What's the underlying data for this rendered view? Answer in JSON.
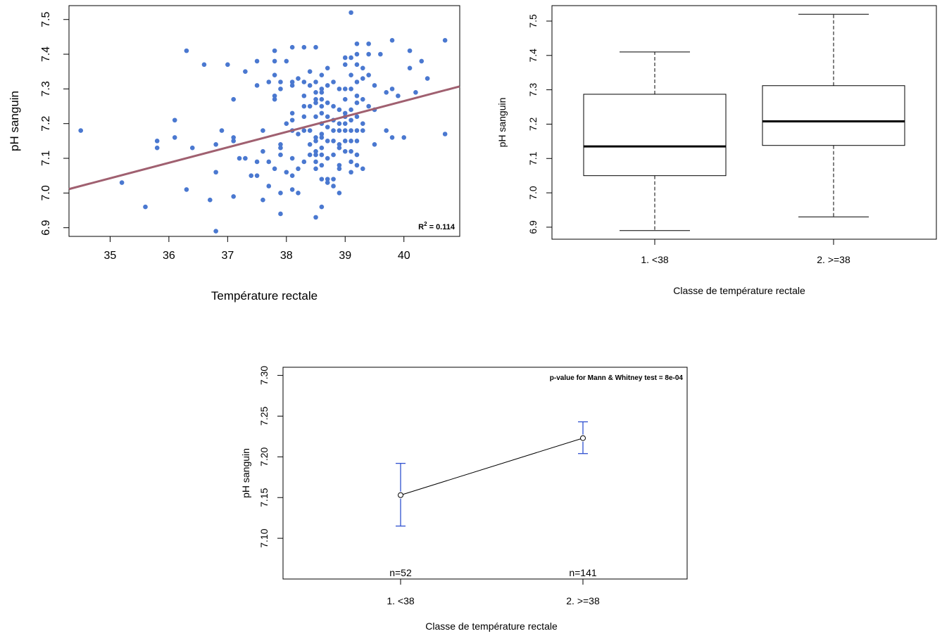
{
  "chart_data": [
    {
      "type": "scatter",
      "xlabel": "Température rectale",
      "ylabel": "pH sanguin",
      "xlim": [
        34.3,
        40.95
      ],
      "ylim": [
        6.875,
        7.54
      ],
      "xticks": [
        35,
        36,
        37,
        38,
        39,
        40
      ],
      "yticks": [
        6.9,
        7.0,
        7.1,
        7.2,
        7.3,
        7.4,
        7.5
      ],
      "point_color": "#4a78d0",
      "line_color": "#a06070",
      "regression": {
        "intercept": 5.485,
        "slope": 0.0445
      },
      "annotation": {
        "r2_prefix": "R",
        "r2_sup": "2",
        "r2_value": " = 0.114"
      },
      "points": [
        [
          34.5,
          7.18
        ],
        [
          35.2,
          7.03
        ],
        [
          35.6,
          6.96
        ],
        [
          35.8,
          7.15
        ],
        [
          35.8,
          7.13
        ],
        [
          36.1,
          7.21
        ],
        [
          36.1,
          7.16
        ],
        [
          36.3,
          7.41
        ],
        [
          36.3,
          7.01
        ],
        [
          36.4,
          7.13
        ],
        [
          36.6,
          7.37
        ],
        [
          36.7,
          6.98
        ],
        [
          36.8,
          7.14
        ],
        [
          36.8,
          7.06
        ],
        [
          36.8,
          6.89
        ],
        [
          36.9,
          7.18
        ],
        [
          37.0,
          7.37
        ],
        [
          37.1,
          7.27
        ],
        [
          37.1,
          7.16
        ],
        [
          37.1,
          7.15
        ],
        [
          37.1,
          6.99
        ],
        [
          37.2,
          7.1
        ],
        [
          37.3,
          7.35
        ],
        [
          37.3,
          7.1
        ],
        [
          37.4,
          7.05
        ],
        [
          37.5,
          7.38
        ],
        [
          37.5,
          7.31
        ],
        [
          37.5,
          7.09
        ],
        [
          37.5,
          7.05
        ],
        [
          37.6,
          7.18
        ],
        [
          37.6,
          6.98
        ],
        [
          37.7,
          7.32
        ],
        [
          37.7,
          7.09
        ],
        [
          37.7,
          7.02
        ],
        [
          37.8,
          7.41
        ],
        [
          37.8,
          7.38
        ],
        [
          37.8,
          7.34
        ],
        [
          37.8,
          7.27
        ],
        [
          37.8,
          7.07
        ],
        [
          37.9,
          7.32
        ],
        [
          37.9,
          7.3
        ],
        [
          37.9,
          7.14
        ],
        [
          37.9,
          7.13
        ],
        [
          37.9,
          7.11
        ],
        [
          37.9,
          7.0
        ],
        [
          37.9,
          6.94
        ],
        [
          38.0,
          7.38
        ],
        [
          38.0,
          7.06
        ],
        [
          38.1,
          7.42
        ],
        [
          38.1,
          7.32
        ],
        [
          38.1,
          7.31
        ],
        [
          38.1,
          7.21
        ],
        [
          38.1,
          7.18
        ],
        [
          38.1,
          7.1
        ],
        [
          38.1,
          7.05
        ],
        [
          38.1,
          7.01
        ],
        [
          38.2,
          7.17
        ],
        [
          38.2,
          7.07
        ],
        [
          38.2,
          7.0
        ],
        [
          38.3,
          7.42
        ],
        [
          38.3,
          7.32
        ],
        [
          38.3,
          7.28
        ],
        [
          38.3,
          7.25
        ],
        [
          38.3,
          7.22
        ],
        [
          38.3,
          7.18
        ],
        [
          38.4,
          7.35
        ],
        [
          38.4,
          7.31
        ],
        [
          38.4,
          7.25
        ],
        [
          38.4,
          7.18
        ],
        [
          38.4,
          7.11
        ],
        [
          38.5,
          7.42
        ],
        [
          38.5,
          7.32
        ],
        [
          38.5,
          7.29
        ],
        [
          38.5,
          7.27
        ],
        [
          38.5,
          7.26
        ],
        [
          38.5,
          7.22
        ],
        [
          38.5,
          7.16
        ],
        [
          38.5,
          7.15
        ],
        [
          38.5,
          7.12
        ],
        [
          38.5,
          7.11
        ],
        [
          38.5,
          7.09
        ],
        [
          38.5,
          7.07
        ],
        [
          38.5,
          6.93
        ],
        [
          38.6,
          7.34
        ],
        [
          38.6,
          7.3
        ],
        [
          38.6,
          7.29
        ],
        [
          38.6,
          7.27
        ],
        [
          38.6,
          7.25
        ],
        [
          38.6,
          7.2
        ],
        [
          38.6,
          7.17
        ],
        [
          38.6,
          7.16
        ],
        [
          38.6,
          7.13
        ],
        [
          38.6,
          7.11
        ],
        [
          38.6,
          7.08
        ],
        [
          38.6,
          7.04
        ],
        [
          38.6,
          6.96
        ],
        [
          38.7,
          7.36
        ],
        [
          38.7,
          7.31
        ],
        [
          38.7,
          7.22
        ],
        [
          38.7,
          7.19
        ],
        [
          38.7,
          7.15
        ],
        [
          38.7,
          7.1
        ],
        [
          38.7,
          7.04
        ],
        [
          38.7,
          7.03
        ],
        [
          38.8,
          7.32
        ],
        [
          38.8,
          7.25
        ],
        [
          38.8,
          7.21
        ],
        [
          38.8,
          7.18
        ],
        [
          38.8,
          7.15
        ],
        [
          38.8,
          7.11
        ],
        [
          38.8,
          7.04
        ],
        [
          38.9,
          7.24
        ],
        [
          38.9,
          7.2
        ],
        [
          38.9,
          7.18
        ],
        [
          38.9,
          7.14
        ],
        [
          38.9,
          7.13
        ],
        [
          38.9,
          7.08
        ],
        [
          38.9,
          7.07
        ],
        [
          38.9,
          7.0
        ],
        [
          39.0,
          7.39
        ],
        [
          39.0,
          7.37
        ],
        [
          39.0,
          7.3
        ],
        [
          39.0,
          7.23
        ],
        [
          39.0,
          7.22
        ],
        [
          39.0,
          7.2
        ],
        [
          39.0,
          7.18
        ],
        [
          39.0,
          7.15
        ],
        [
          39.0,
          7.12
        ],
        [
          39.1,
          7.52
        ],
        [
          39.1,
          7.39
        ],
        [
          39.1,
          7.34
        ],
        [
          39.1,
          7.3
        ],
        [
          39.1,
          7.24
        ],
        [
          39.1,
          7.21
        ],
        [
          39.1,
          7.18
        ],
        [
          39.1,
          7.15
        ],
        [
          39.1,
          7.12
        ],
        [
          39.1,
          7.09
        ],
        [
          39.2,
          7.43
        ],
        [
          39.2,
          7.4
        ],
        [
          39.2,
          7.37
        ],
        [
          39.2,
          7.32
        ],
        [
          39.2,
          7.28
        ],
        [
          39.2,
          7.26
        ],
        [
          39.2,
          7.22
        ],
        [
          39.2,
          7.18
        ],
        [
          39.2,
          7.15
        ],
        [
          39.2,
          7.11
        ],
        [
          39.2,
          7.08
        ],
        [
          39.3,
          7.36
        ],
        [
          39.3,
          7.33
        ],
        [
          39.3,
          7.27
        ],
        [
          39.3,
          7.18
        ],
        [
          39.3,
          7.07
        ],
        [
          39.4,
          7.43
        ],
        [
          39.4,
          7.4
        ],
        [
          39.4,
          7.34
        ],
        [
          39.5,
          7.24
        ],
        [
          39.5,
          7.14
        ],
        [
          39.6,
          7.4
        ],
        [
          39.7,
          7.29
        ],
        [
          39.7,
          7.18
        ],
        [
          39.8,
          7.44
        ],
        [
          39.8,
          7.3
        ],
        [
          39.8,
          7.16
        ],
        [
          39.9,
          7.28
        ],
        [
          40.0,
          7.16
        ],
        [
          40.1,
          7.41
        ],
        [
          40.1,
          7.36
        ],
        [
          40.2,
          7.29
        ],
        [
          40.3,
          7.38
        ],
        [
          40.4,
          7.33
        ],
        [
          40.7,
          7.44
        ],
        [
          40.7,
          7.17
        ],
        [
          39.0,
          7.27
        ],
        [
          38.9,
          7.3
        ],
        [
          38.1,
          7.23
        ],
        [
          37.8,
          7.28
        ],
        [
          39.4,
          7.25
        ],
        [
          38.2,
          7.33
        ],
        [
          38.6,
          7.23
        ],
        [
          39.3,
          7.2
        ],
        [
          38.7,
          7.26
        ],
        [
          38.4,
          7.14
        ],
        [
          39.1,
          7.06
        ],
        [
          38.8,
          7.02
        ],
        [
          37.6,
          7.12
        ],
        [
          38.3,
          7.09
        ],
        [
          39.5,
          7.31
        ],
        [
          38.0,
          7.2
        ]
      ]
    },
    {
      "type": "box",
      "xlabel": "Classe de température rectale",
      "ylabel": "pH sanguin",
      "ylim": [
        6.865,
        7.545
      ],
      "yticks": [
        6.9,
        7.0,
        7.1,
        7.2,
        7.3,
        7.4,
        7.5
      ],
      "categories": [
        "1. <38",
        "2. >=38"
      ],
      "boxes": [
        {
          "min": 6.89,
          "q1": 7.05,
          "median": 7.135,
          "q3": 7.287,
          "max": 7.41
        },
        {
          "min": 6.93,
          "q1": 7.138,
          "median": 7.208,
          "q3": 7.312,
          "max": 7.52
        }
      ]
    },
    {
      "type": "line",
      "xlabel": "Classe de température rectale",
      "ylabel": "pH sanguin",
      "ylim": [
        7.05,
        7.31
      ],
      "yticks": [
        7.1,
        7.15,
        7.2,
        7.25,
        7.3
      ],
      "categories": [
        "1. <38",
        "2. >=38"
      ],
      "means": [
        7.153,
        7.223
      ],
      "ci_low": [
        7.115,
        7.204
      ],
      "ci_high": [
        7.192,
        7.243
      ],
      "n_labels": [
        "n=52",
        "n=141"
      ],
      "annotation": "p-value for Mann & Whitney test = 8e-04",
      "errorbar_color": "#3050d0"
    }
  ]
}
